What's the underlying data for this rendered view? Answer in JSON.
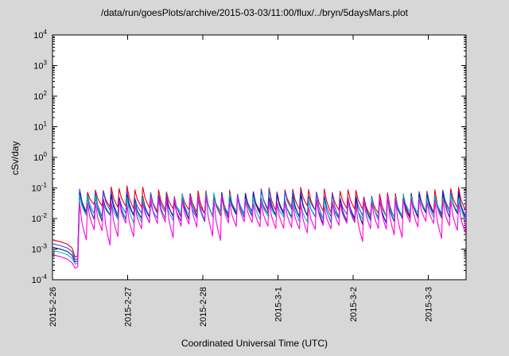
{
  "chart_data": {
    "type": "line",
    "title": "/data/run/goesPlots/archive/2015-03-03/11:00/flux/../bryn/5daysMars.plot",
    "xlabel": "Coordinated Universal Time (UTC)",
    "ylabel": "cSv/day",
    "x_range_days": [
      0,
      5.5
    ],
    "x_ticks": [
      {
        "day": 0,
        "label": "2015-2-26"
      },
      {
        "day": 1,
        "label": "2015-2-27"
      },
      {
        "day": 2,
        "label": "2015-2-28"
      },
      {
        "day": 3,
        "label": "2015-3-1"
      },
      {
        "day": 4,
        "label": "2015-3-2"
      },
      {
        "day": 5,
        "label": "2015-3-3"
      }
    ],
    "y_log_range": [
      -4,
      4
    ],
    "y_tick_exponents": [
      -4,
      -3,
      -2,
      -1,
      0,
      1,
      2,
      3,
      4
    ],
    "grid": false,
    "legend": "none",
    "background_color": "#d7d7d7",
    "plot_background_color": "#ffffff",
    "pattern": {
      "description": "flat low start, dip near day 0.3, jump up, then dense sawtooth oscillation",
      "dip_start_day": 0.26,
      "dip_bottom_day": 0.3,
      "rise_day": 0.345,
      "period_days": 0.105,
      "rise_fraction": 0.15
    },
    "series": [
      {
        "name": "series-red",
        "color": "#e8000d",
        "start": 0.002,
        "dip": 0.00055,
        "peak": 0.08,
        "trough": 0.018
      },
      {
        "name": "series-blue",
        "color": "#2b50d9",
        "start": 0.0015,
        "dip": 0.00045,
        "peak": 0.062,
        "trough": 0.014
      },
      {
        "name": "series-navy",
        "color": "#16169b",
        "start": 0.00115,
        "dip": 0.00038,
        "peak": 0.052,
        "trough": 0.011
      },
      {
        "name": "series-cyan",
        "color": "#00b7c4",
        "start": 0.0009,
        "dip": 0.00032,
        "peak": 0.046,
        "trough": 0.012
      },
      {
        "name": "series-magenta",
        "color": "#ff00e1",
        "start": 0.00065,
        "dip": 0.00024,
        "peak": 0.04,
        "trough": 0.006
      }
    ]
  }
}
